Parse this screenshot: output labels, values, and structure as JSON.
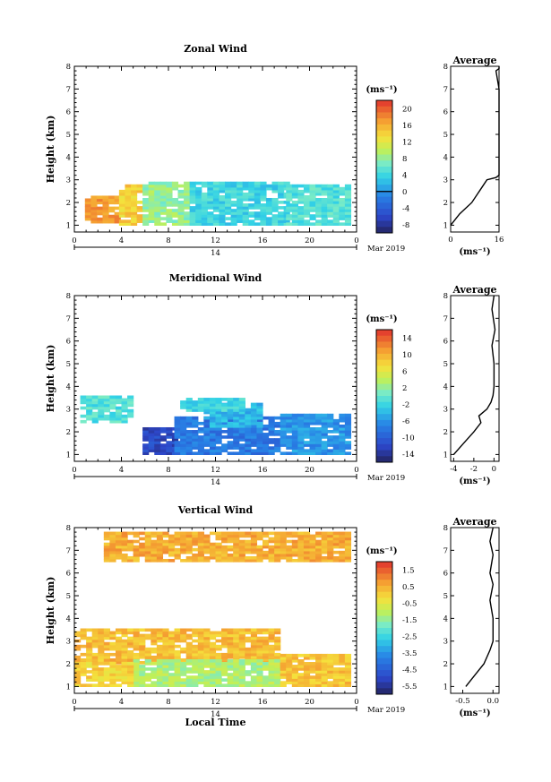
{
  "date_label": "Mar 2019",
  "day_label": "14",
  "xlabel": "Local Time",
  "ylabel": "Height (km)",
  "avg_title": "Average",
  "unit_label": "(ms⁻¹)",
  "x_ticks": [
    "0",
    "4",
    "8",
    "12",
    "16",
    "20",
    "0"
  ],
  "y_ticks": [
    "1",
    "2",
    "3",
    "4",
    "5",
    "6",
    "7",
    "8"
  ],
  "chart_data": [
    {
      "type": "heatmap",
      "title": "Zonal Wind",
      "xlabel": "",
      "ylabel": "Height (km)",
      "xlim": [
        0,
        24
      ],
      "ylim": [
        0.7,
        8
      ],
      "colorbar": {
        "label": "(ms⁻¹)",
        "ticks": [
          "20",
          "16",
          "12",
          "8",
          "4",
          "0",
          "-4",
          "-8"
        ],
        "range": [
          -10,
          22
        ]
      },
      "regions": [
        {
          "x": [
            0.9,
            3.8
          ],
          "y": [
            1.1,
            2.2
          ],
          "value": 17
        },
        {
          "x": [
            3.8,
            5.8
          ],
          "y": [
            1.0,
            2.7
          ],
          "value": 14
        },
        {
          "x": [
            5.8,
            9.8
          ],
          "y": [
            1.0,
            2.9
          ],
          "value": 8
        },
        {
          "x": [
            9.8,
            18.0
          ],
          "y": [
            1.0,
            2.9
          ],
          "value": 4
        },
        {
          "x": [
            18.0,
            23.3
          ],
          "y": [
            1.0,
            2.7
          ],
          "value": 5
        }
      ],
      "average": {
        "title": "Average",
        "xlabel": "(ms⁻¹)",
        "xticks": [
          "0",
          "16"
        ],
        "xlim": [
          0,
          16
        ],
        "x": [
          0,
          3,
          7,
          9,
          10,
          12,
          15,
          16,
          16,
          15,
          16,
          16
        ],
        "y": [
          1.0,
          1.5,
          2.0,
          2.4,
          2.6,
          3.0,
          3.1,
          3.2,
          7.0,
          7.8,
          7.9,
          8.0
        ]
      }
    },
    {
      "type": "heatmap",
      "title": "Meridional Wind",
      "xlabel": "",
      "ylabel": "Height (km)",
      "xlim": [
        0,
        24
      ],
      "ylim": [
        0.7,
        8
      ],
      "colorbar": {
        "label": "(ms⁻¹)",
        "ticks": [
          "14",
          "10",
          "6",
          "2",
          "-2",
          "-6",
          "-10",
          "-14"
        ],
        "range": [
          -16,
          16
        ]
      },
      "regions": [
        {
          "x": [
            0.5,
            4.8
          ],
          "y": [
            2.4,
            3.5
          ],
          "value": -1
        },
        {
          "x": [
            5.8,
            8.5
          ],
          "y": [
            1.0,
            2.1
          ],
          "value": -12
        },
        {
          "x": [
            8.5,
            17.5
          ],
          "y": [
            1.0,
            2.6
          ],
          "value": -8
        },
        {
          "x": [
            11.0,
            16.0
          ],
          "y": [
            2.2,
            3.2
          ],
          "value": -4
        },
        {
          "x": [
            17.5,
            23.2
          ],
          "y": [
            1.0,
            2.7
          ],
          "value": -6
        },
        {
          "x": [
            9.0,
            14.5
          ],
          "y": [
            2.9,
            3.4
          ],
          "value": -2
        }
      ],
      "average": {
        "title": "Average",
        "xlabel": "(ms⁻¹)",
        "xticks": [
          "-4",
          "-2",
          "0"
        ],
        "xlim": [
          -4.3,
          0.5
        ],
        "x": [
          -4.0,
          -3.0,
          -2.0,
          -1.3,
          -1.5,
          -0.7,
          -0.3,
          -0.1,
          0.0,
          0.0,
          -0.2,
          0.1,
          -0.2,
          0.0
        ],
        "y": [
          1.0,
          1.5,
          2.0,
          2.4,
          2.7,
          3.0,
          3.3,
          3.6,
          4.0,
          5.0,
          5.8,
          6.5,
          7.4,
          8.0
        ]
      }
    },
    {
      "type": "heatmap",
      "title": "Vertical Wind",
      "xlabel": "Local Time",
      "ylabel": "Height (km)",
      "xlim": [
        0,
        24
      ],
      "ylim": [
        0.7,
        8
      ],
      "colorbar": {
        "label": "(ms⁻¹)",
        "ticks": [
          "1.5",
          "0.5",
          "-0.5",
          "-1.5",
          "-2.5",
          "-3.5",
          "-4.5",
          "-5.5"
        ],
        "range": [
          -6,
          2
        ]
      },
      "regions": [
        {
          "x": [
            0.0,
            17.5
          ],
          "y": [
            2.0,
            3.5
          ],
          "value": 0.3
        },
        {
          "x": [
            5.0,
            17.5
          ],
          "y": [
            1.0,
            2.2
          ],
          "value": -1.2
        },
        {
          "x": [
            0.0,
            5.0
          ],
          "y": [
            1.0,
            2.0
          ],
          "value": 0.0
        },
        {
          "x": [
            17.5,
            23.5
          ],
          "y": [
            1.0,
            2.4
          ],
          "value": 0.2
        },
        {
          "x": [
            2.5,
            23.5
          ],
          "y": [
            6.5,
            7.8
          ],
          "value": 0.5
        }
      ],
      "average": {
        "title": "Average",
        "xlabel": "(ms⁻¹)",
        "xticks": [
          "-0.5",
          "0.0"
        ],
        "xlim": [
          -0.7,
          0.1
        ],
        "x": [
          -0.45,
          -0.3,
          -0.15,
          -0.05,
          0.0,
          0.0,
          -0.05,
          0.0,
          -0.05,
          0.0,
          -0.05,
          0.0
        ],
        "y": [
          1.0,
          1.5,
          2.0,
          2.6,
          3.0,
          4.0,
          4.8,
          5.5,
          6.0,
          6.8,
          7.4,
          8.0
        ]
      }
    }
  ]
}
